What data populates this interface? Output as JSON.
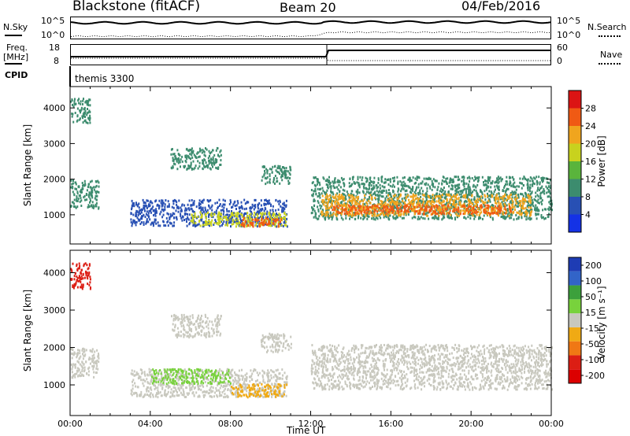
{
  "header": {
    "station": "Blackstone (fitACF)",
    "beam": "Beam 20",
    "date": "04/Feb/2016"
  },
  "status_panels": {
    "nsky_label": "N.Sky",
    "nsearch_label": "N.Search",
    "nsky_ticks": [
      "10^5",
      "10^0"
    ],
    "nsearch_ticks": [
      "10^5",
      "10^0"
    ],
    "freq_label_line1": "Freq.",
    "freq_label_line2": "[MHz]",
    "freq_ticks": [
      "18",
      "8"
    ],
    "nave_label": "Nave",
    "nave_ticks": [
      "60",
      "0"
    ],
    "cpid_label": "CPID",
    "cpid_text": "themis 3300"
  },
  "chart_data": [
    {
      "type": "heatmap",
      "title": "Power",
      "xlabel": "Time UT",
      "ylabel": "Slant Range [km]",
      "x_ticks": [
        "00:00",
        "04:00",
        "08:00",
        "12:00",
        "16:00",
        "20:00",
        "00:00"
      ],
      "y_ticks": [
        1000,
        2000,
        3000,
        4000
      ],
      "ylim": [
        180,
        4600
      ],
      "colorbar_label": "Power [dB]",
      "colorbar_ticks": [
        "4",
        "8",
        "12",
        "16",
        "20",
        "24",
        "28"
      ],
      "colors": [
        "#1432e6",
        "#2850b4",
        "#3c8c6e",
        "#5ab43c",
        "#c8d21e",
        "#f0a51e",
        "#f05a14",
        "#dc1414"
      ],
      "regions": [
        {
          "t0": 0.0,
          "t1": 1.4,
          "r0": 1200,
          "r1": 2000,
          "level": 2
        },
        {
          "t0": 0.0,
          "t1": 1.0,
          "r0": 3600,
          "r1": 4300,
          "level": 2
        },
        {
          "t0": 3.0,
          "t1": 10.8,
          "r0": 700,
          "r1": 1450,
          "level": 1
        },
        {
          "t0": 6.0,
          "t1": 10.8,
          "r0": 700,
          "r1": 1100,
          "level": 4
        },
        {
          "t0": 8.5,
          "t1": 10.5,
          "r0": 700,
          "r1": 950,
          "level": 6
        },
        {
          "t0": 5.0,
          "t1": 7.5,
          "r0": 2300,
          "r1": 2900,
          "level": 2
        },
        {
          "t0": 9.5,
          "t1": 11.0,
          "r0": 1900,
          "r1": 2400,
          "level": 2
        },
        {
          "t0": 12.0,
          "t1": 24.0,
          "r0": 900,
          "r1": 2100,
          "level": 2
        },
        {
          "t0": 12.5,
          "t1": 23.0,
          "r0": 1000,
          "r1": 1600,
          "level": 5
        },
        {
          "t0": 13.0,
          "t1": 22.0,
          "r0": 1050,
          "r1": 1300,
          "level": 6
        }
      ]
    },
    {
      "type": "heatmap",
      "title": "Velocity",
      "xlabel": "Time UT",
      "ylabel": "Slant Range [km]",
      "x_ticks": [
        "00:00",
        "04:00",
        "08:00",
        "12:00",
        "16:00",
        "20:00",
        "00:00"
      ],
      "y_ticks": [
        1000,
        2000,
        3000,
        4000
      ],
      "ylim": [
        180,
        4600
      ],
      "colorbar_label": "Velocity [m s⁻¹]",
      "colorbar_ticks": [
        "200",
        "100",
        "50",
        "15",
        "-15",
        "-50",
        "-100",
        "-200"
      ],
      "colors": [
        "#1e3cb4",
        "#3264c8",
        "#3ca03c",
        "#78d23c",
        "#c8c8be",
        "#f0aa14",
        "#f07814",
        "#dc1e14",
        "#dc0000"
      ],
      "regions": [
        {
          "t0": 0.0,
          "t1": 1.4,
          "r0": 1200,
          "r1": 2000,
          "level": 4
        },
        {
          "t0": 3.0,
          "t1": 10.8,
          "r0": 700,
          "r1": 1450,
          "level": 4
        },
        {
          "t0": 4.0,
          "t1": 8.0,
          "r0": 1050,
          "r1": 1450,
          "level": 3
        },
        {
          "t0": 8.0,
          "t1": 10.8,
          "r0": 700,
          "r1": 1050,
          "level": 5
        },
        {
          "t0": 5.0,
          "t1": 7.5,
          "r0": 2300,
          "r1": 2900,
          "level": 4
        },
        {
          "t0": 9.5,
          "t1": 11.0,
          "r0": 1900,
          "r1": 2400,
          "level": 4
        },
        {
          "t0": 12.0,
          "t1": 24.0,
          "r0": 900,
          "r1": 2100,
          "level": 4
        },
        {
          "t0": 0.0,
          "t1": 1.0,
          "r0": 3600,
          "r1": 4300,
          "level": 7
        }
      ]
    }
  ]
}
